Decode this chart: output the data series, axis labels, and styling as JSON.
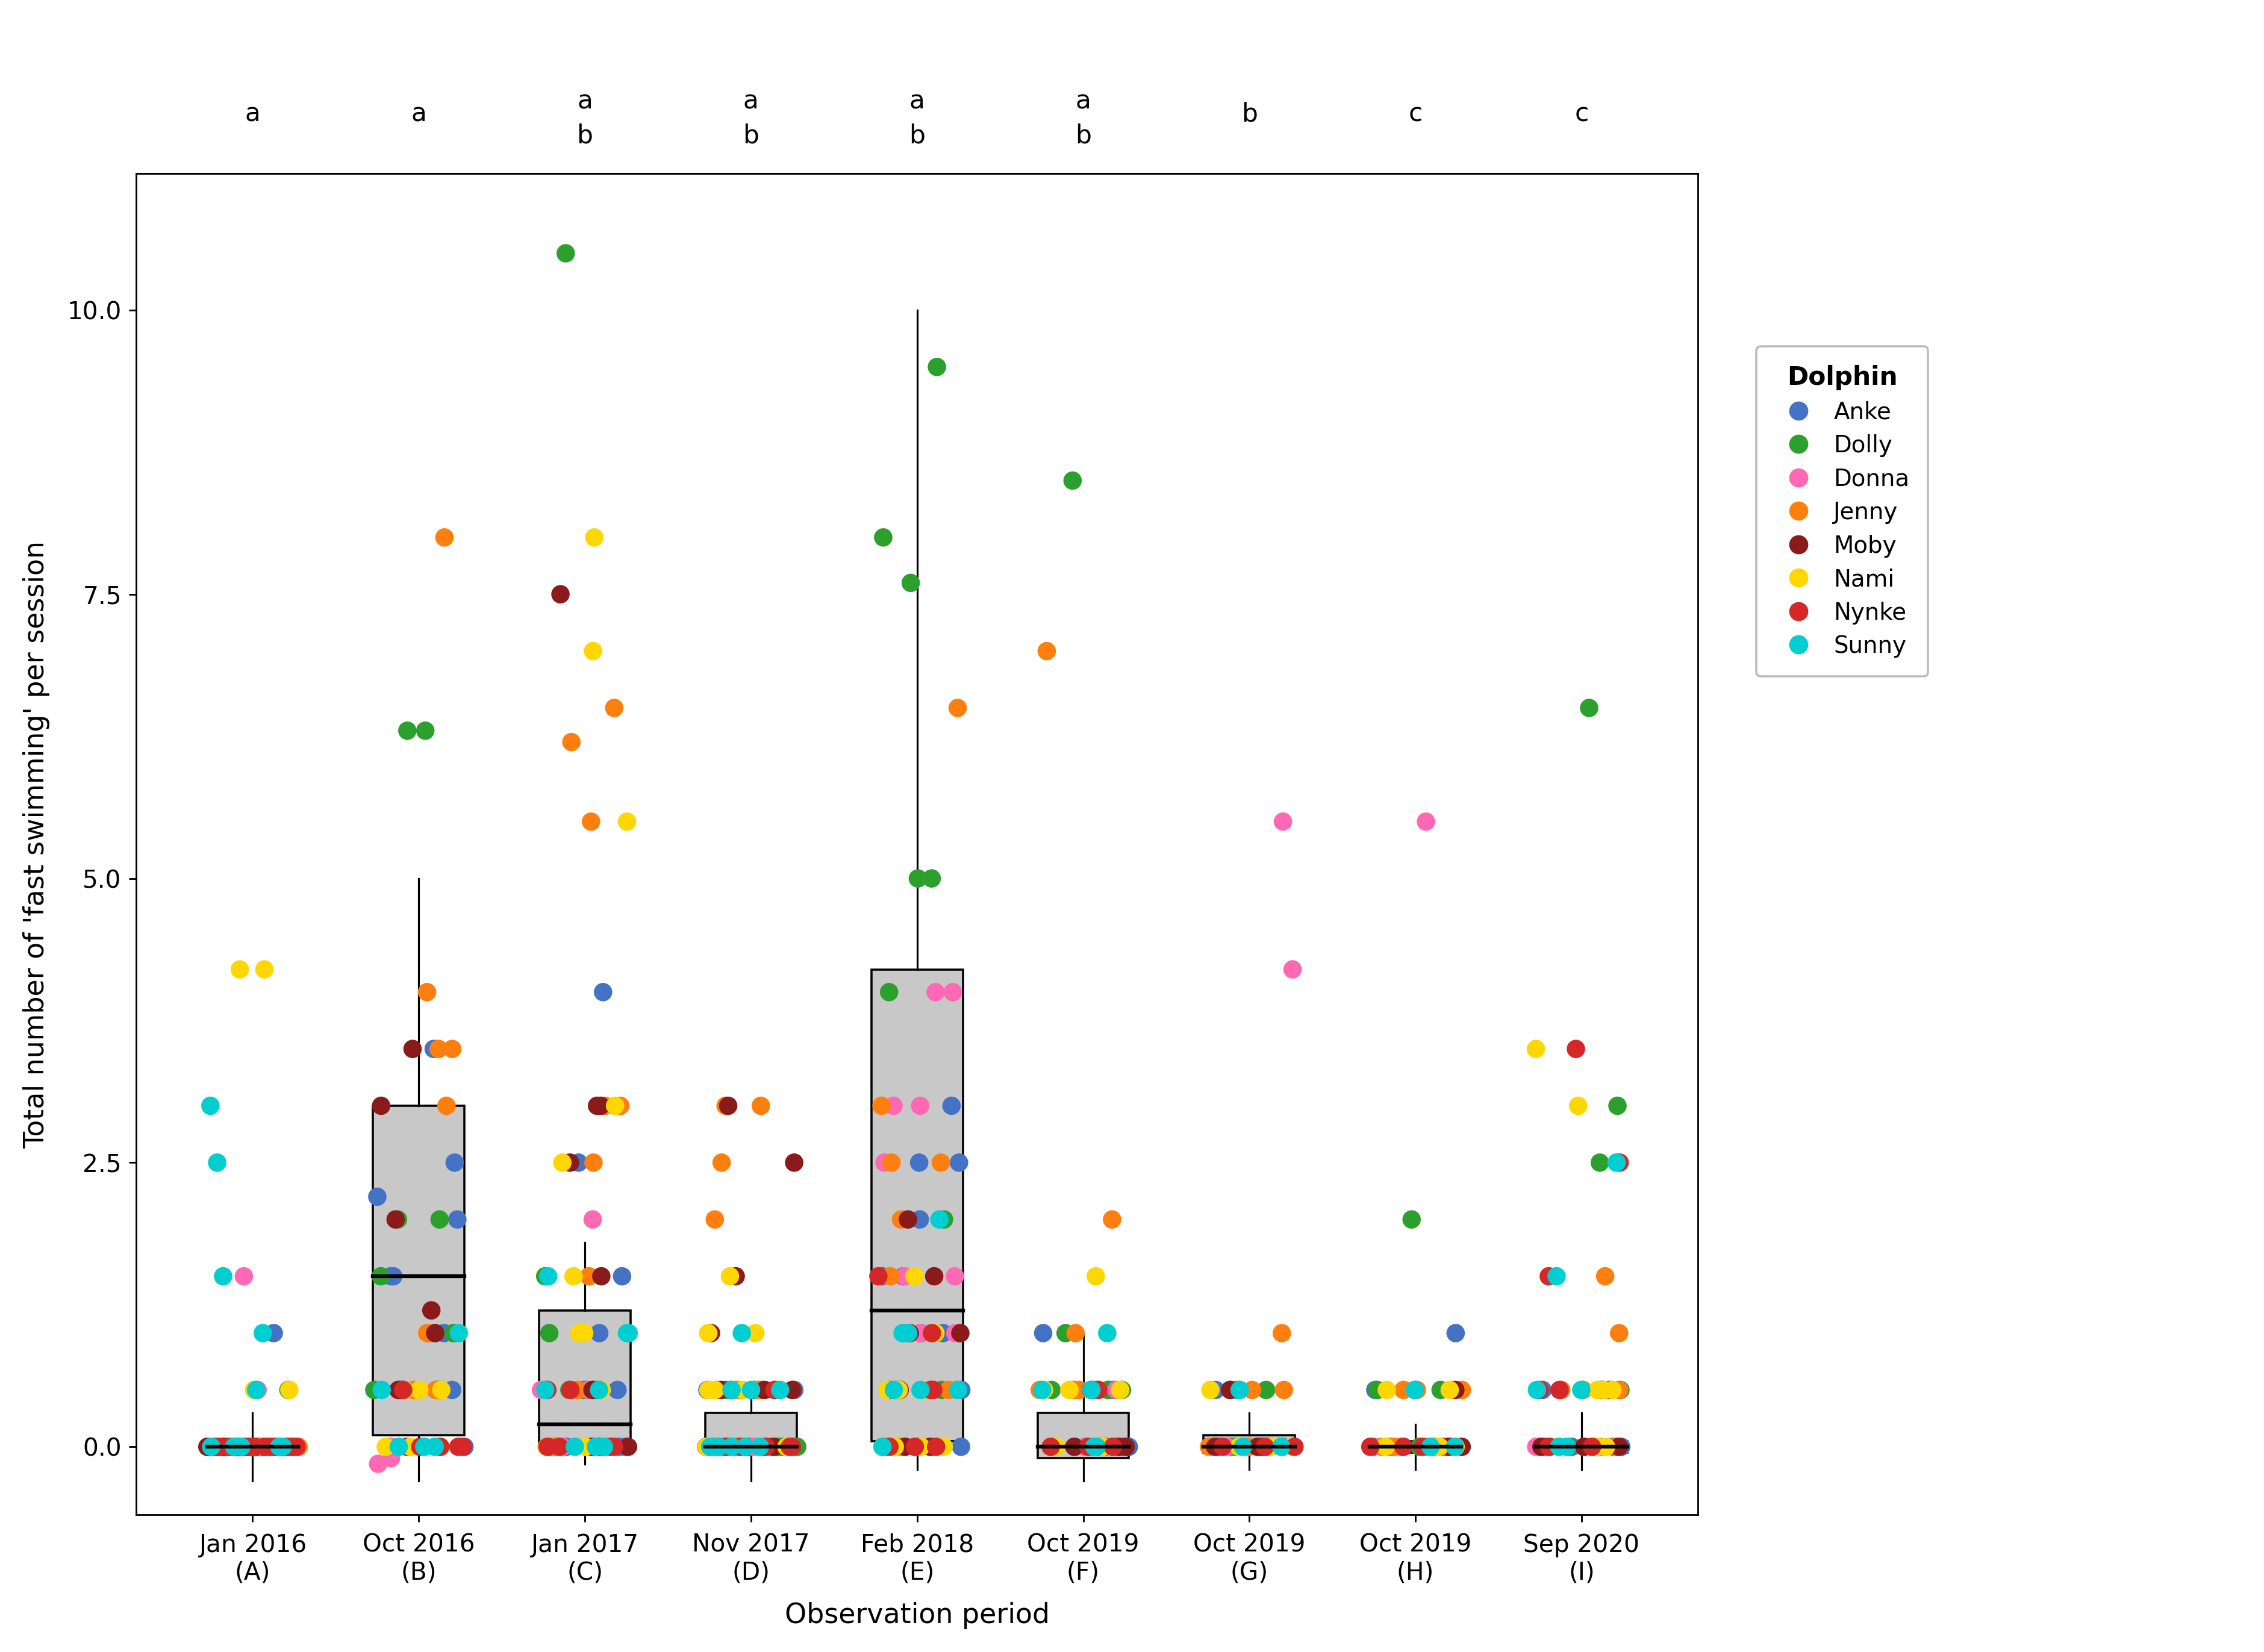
{
  "periods": [
    "Jan 2016\n(A)",
    "Oct 2016\n(B)",
    "Jan 2017\n(C)",
    "Nov 2017\n(D)",
    "Feb 2018\n(E)",
    "Oct 2019\n(F)",
    "Oct 2019\n(G)",
    "Oct 2019\n(H)",
    "Sep 2020\n(I)"
  ],
  "top_labels": [
    [
      "a"
    ],
    [
      "a"
    ],
    [
      "a",
      "b"
    ],
    [
      "a",
      "b"
    ],
    [
      "a",
      "b"
    ],
    [
      "a",
      "b"
    ],
    [
      "b"
    ],
    [
      "c"
    ],
    [
      "c"
    ]
  ],
  "dolphins": [
    "Anke",
    "Dolly",
    "Donna",
    "Jenny",
    "Moby",
    "Nami",
    "Nynke",
    "Sunny"
  ],
  "dolphin_colors": {
    "Anke": "#4472C4",
    "Dolly": "#2CA02C",
    "Donna": "#FF69B4",
    "Jenny": "#FF7F0E",
    "Moby": "#8B1A1A",
    "Nami": "#FFD700",
    "Nynke": "#D62728",
    "Sunny": "#00CED1"
  },
  "ylabel": "Total number of 'fast swimming' per session",
  "xlabel": "Observation period",
  "legend_title": "Dolphin",
  "ylim": [
    -0.6,
    11.2
  ],
  "yticks": [
    0.0,
    2.5,
    5.0,
    7.5,
    10.0
  ],
  "box_data": {
    "A": {
      "q1": -0.05,
      "median": 0.0,
      "q3": 0.05,
      "whisker_low": -0.3,
      "whisker_high": 0.3
    },
    "B": {
      "q1": 0.1,
      "median": 1.5,
      "q3": 3.0,
      "whisker_low": -0.3,
      "whisker_high": 5.0
    },
    "C": {
      "q1": 0.0,
      "median": 0.2,
      "q3": 1.2,
      "whisker_low": -0.15,
      "whisker_high": 1.8
    },
    "D": {
      "q1": -0.05,
      "median": 0.0,
      "q3": 0.3,
      "whisker_low": -0.3,
      "whisker_high": 0.5
    },
    "E": {
      "q1": 0.05,
      "median": 1.2,
      "q3": 4.2,
      "whisker_low": -0.2,
      "whisker_high": 10.0
    },
    "F": {
      "q1": -0.1,
      "median": 0.0,
      "q3": 0.3,
      "whisker_low": -0.3,
      "whisker_high": 1.0
    },
    "G": {
      "q1": -0.05,
      "median": 0.0,
      "q3": 0.1,
      "whisker_low": -0.2,
      "whisker_high": 0.3
    },
    "H": {
      "q1": -0.05,
      "median": 0.0,
      "q3": 0.05,
      "whisker_low": -0.2,
      "whisker_high": 0.2
    },
    "I": {
      "q1": -0.05,
      "median": 0.0,
      "q3": 0.05,
      "whisker_low": -0.2,
      "whisker_high": 0.3
    }
  },
  "scatter_data": {
    "A": [
      {
        "dolphin": "Anke",
        "y": [
          0.0,
          0.0,
          0.0,
          0.0,
          0.0,
          0.0,
          0.0,
          1.0,
          0.0,
          0.0,
          0.0,
          0.0,
          0.0,
          0.0,
          0.0,
          0.0,
          0.0,
          0.0,
          0.0,
          0.0
        ]
      },
      {
        "dolphin": "Dolly",
        "y": [
          0.0,
          0.0,
          0.0,
          0.0,
          0.0,
          0.0,
          0.0,
          0.0,
          0.0,
          0.0,
          0.0,
          0.0,
          0.0,
          0.0,
          0.0,
          0.0,
          0.5,
          0.0,
          0.0,
          0.0
        ]
      },
      {
        "dolphin": "Donna",
        "y": [
          0.0,
          1.5,
          0.5,
          0.0,
          0.0,
          0.0,
          0.0,
          0.0,
          0.0,
          0.0
        ]
      },
      {
        "dolphin": "Jenny",
        "y": [
          0.0,
          0.0,
          0.0,
          0.0,
          0.0,
          0.0,
          0.0,
          0.0,
          0.0,
          0.0,
          0.0,
          0.0,
          0.0,
          0.0,
          0.0,
          0.0,
          0.0,
          0.0,
          0.0,
          0.0
        ]
      },
      {
        "dolphin": "Moby",
        "y": [
          0.0,
          0.0,
          0.0,
          0.0,
          0.0,
          0.0,
          0.0,
          0.0,
          0.0,
          0.0,
          0.0,
          0.0,
          0.0,
          0.0,
          0.0,
          0.0,
          0.0,
          0.0,
          0.0,
          0.0
        ]
      },
      {
        "dolphin": "Nami",
        "y": [
          4.2,
          4.2,
          0.5,
          0.5,
          0.0,
          0.0,
          0.0,
          0.0
        ]
      },
      {
        "dolphin": "Nynke",
        "y": [
          0.0,
          0.0,
          0.0,
          0.0,
          0.0,
          0.0,
          0.0,
          0.0,
          0.0,
          0.0,
          0.0,
          0.0,
          0.0,
          0.0,
          0.0,
          0.0,
          0.0,
          0.0,
          0.0,
          0.0
        ]
      },
      {
        "dolphin": "Sunny",
        "y": [
          3.0,
          2.5,
          0.5,
          0.0,
          0.0,
          0.0,
          1.0,
          0.0,
          1.5,
          0.0
        ]
      }
    ],
    "B": [
      {
        "dolphin": "Anke",
        "y": [
          0.5,
          1.0,
          2.0,
          1.5,
          0.0,
          0.5,
          2.5,
          0.5,
          2.2,
          1.5,
          0.5,
          3.5
        ]
      },
      {
        "dolphin": "Dolly",
        "y": [
          1.0,
          2.0,
          1.5,
          0.5,
          0.0,
          2.0,
          1.0,
          6.3,
          6.3,
          0.5
        ]
      },
      {
        "dolphin": "Donna",
        "y": [
          0.0,
          0.5,
          0.0,
          -0.1,
          1.0,
          -0.15
        ]
      },
      {
        "dolphin": "Jenny",
        "y": [
          0.0,
          0.5,
          1.0,
          0.5,
          3.5,
          8.0,
          0.5,
          3.0,
          4.0,
          3.5,
          0.5
        ]
      },
      {
        "dolphin": "Moby",
        "y": [
          0.0,
          0.5,
          3.0,
          3.5,
          1.0,
          2.0,
          0.5,
          1.2
        ]
      },
      {
        "dolphin": "Nami",
        "y": [
          0.0,
          0.5,
          0.5,
          0.0,
          0.5,
          0.0
        ]
      },
      {
        "dolphin": "Nynke",
        "y": [
          0.0,
          0.0,
          0.5,
          0.0,
          0.0
        ]
      },
      {
        "dolphin": "Sunny",
        "y": [
          0.0,
          0.5,
          0.0,
          1.0,
          0.0
        ]
      }
    ],
    "C": [
      {
        "dolphin": "Anke",
        "y": [
          0.0,
          0.5,
          4.0,
          1.5,
          0.0,
          0.5,
          0.0,
          2.5,
          0.0,
          1.0,
          0.5,
          0.0,
          0.0
        ]
      },
      {
        "dolphin": "Dolly",
        "y": [
          0.5,
          1.0,
          0.0,
          0.5,
          0.0,
          10.5,
          0.5,
          1.5,
          0.0,
          0.0,
          0.5
        ]
      },
      {
        "dolphin": "Donna",
        "y": [
          0.0,
          0.5,
          0.0,
          0.0,
          0.5,
          0.0,
          2.0,
          0.0
        ]
      },
      {
        "dolphin": "Jenny",
        "y": [
          0.0,
          0.0,
          1.5,
          5.5,
          6.5,
          6.2,
          2.5,
          0.5,
          0.0,
          0.0,
          3.0,
          3.0,
          0.5,
          0.0,
          0.0
        ]
      },
      {
        "dolphin": "Moby",
        "y": [
          0.0,
          0.0,
          7.5,
          2.5,
          3.0,
          1.5,
          0.0,
          3.0,
          0.5
        ]
      },
      {
        "dolphin": "Nami",
        "y": [
          1.0,
          8.0,
          1.5,
          2.5,
          5.5,
          7.0,
          3.0,
          1.0,
          0.5,
          0.0
        ]
      },
      {
        "dolphin": "Nynke",
        "y": [
          0.0,
          0.5,
          0.0,
          0.5,
          0.0,
          0.0
        ]
      },
      {
        "dolphin": "Sunny",
        "y": [
          0.0,
          0.5,
          1.0,
          0.5,
          1.0,
          0.0,
          1.5,
          0.0
        ]
      }
    ],
    "D": [
      {
        "dolphin": "Anke",
        "y": [
          0.0,
          0.5,
          0.0,
          0.0,
          0.5,
          0.0,
          0.0,
          0.0,
          0.5,
          0.0,
          0.0,
          0.0,
          0.0,
          0.0,
          0.0,
          0.0,
          0.0,
          0.0,
          0.5,
          0.0
        ]
      },
      {
        "dolphin": "Dolly",
        "y": [
          0.0,
          0.5,
          0.0,
          0.5,
          0.0,
          0.0,
          0.0,
          0.5,
          0.0,
          0.0,
          0.0,
          0.0,
          0.5,
          0.0,
          0.0,
          0.0
        ]
      },
      {
        "dolphin": "Donna",
        "y": [
          0.0,
          0.0,
          0.0,
          0.5,
          0.0,
          0.0,
          0.0
        ]
      },
      {
        "dolphin": "Jenny",
        "y": [
          0.0,
          0.5,
          0.0,
          0.0,
          0.5,
          0.0,
          0.5,
          3.0,
          2.5,
          3.0,
          2.0,
          0.5,
          0.0,
          0.0
        ]
      },
      {
        "dolphin": "Moby",
        "y": [
          0.0,
          0.5,
          1.0,
          0.5,
          1.5,
          2.5,
          3.0,
          0.5,
          0.0
        ]
      },
      {
        "dolphin": "Nami",
        "y": [
          0.0,
          0.5,
          1.0,
          1.5,
          0.5,
          0.0,
          0.5,
          0.0,
          1.0,
          0.5,
          0.0
        ]
      },
      {
        "dolphin": "Nynke",
        "y": [
          0.0,
          0.0,
          0.5,
          0.0,
          0.0,
          0.0,
          0.0
        ]
      },
      {
        "dolphin": "Sunny",
        "y": [
          0.0,
          0.5,
          0.0,
          0.5,
          1.0,
          0.5,
          0.0,
          0.0,
          0.0
        ]
      }
    ],
    "E": [
      {
        "dolphin": "Anke",
        "y": [
          0.0,
          1.5,
          0.5,
          2.5,
          1.0,
          3.0,
          2.0,
          2.5,
          0.5,
          1.0,
          0.0,
          1.5,
          0.5
        ]
      },
      {
        "dolphin": "Dolly",
        "y": [
          0.0,
          1.0,
          0.5,
          2.0,
          4.0,
          5.0,
          5.0,
          1.0,
          0.5,
          8.0,
          9.5,
          7.6
        ]
      },
      {
        "dolphin": "Donna",
        "y": [
          0.0,
          1.0,
          1.5,
          3.0,
          4.0,
          1.0,
          1.5,
          4.0,
          3.0,
          2.5
        ]
      },
      {
        "dolphin": "Jenny",
        "y": [
          0.0,
          0.5,
          1.0,
          2.5,
          0.0,
          1.5,
          6.5,
          2.0,
          2.5,
          3.0,
          0.5,
          0.5,
          0.0
        ]
      },
      {
        "dolphin": "Moby",
        "y": [
          0.0,
          0.5,
          1.0,
          0.0,
          2.0,
          1.5,
          0.5,
          0.0,
          1.0
        ]
      },
      {
        "dolphin": "Nami",
        "y": [
          0.0,
          0.5,
          1.0,
          0.5,
          1.5,
          0.0,
          0.5,
          0.5,
          0.0
        ]
      },
      {
        "dolphin": "Nynke",
        "y": [
          0.0,
          0.0,
          1.0,
          1.5,
          0.0,
          0.5,
          0.5
        ]
      },
      {
        "dolphin": "Sunny",
        "y": [
          0.0,
          0.5,
          1.0,
          2.0,
          0.5,
          1.0,
          0.5
        ]
      }
    ],
    "F": [
      {
        "dolphin": "Anke",
        "y": [
          0.0,
          0.0,
          0.5,
          0.5,
          1.0,
          0.0,
          0.0,
          0.5,
          0.0
        ]
      },
      {
        "dolphin": "Dolly",
        "y": [
          0.0,
          0.5,
          1.0,
          8.5,
          0.5,
          0.0,
          0.5
        ]
      },
      {
        "dolphin": "Donna",
        "y": [
          0.0,
          0.5,
          0.0,
          0.0,
          0.5
        ]
      },
      {
        "dolphin": "Jenny",
        "y": [
          0.5,
          7.0,
          0.5,
          1.0,
          2.0,
          0.0,
          0.5,
          0.0,
          0.5
        ]
      },
      {
        "dolphin": "Moby",
        "y": [
          0.0,
          0.0,
          0.5,
          0.0,
          0.0
        ]
      },
      {
        "dolphin": "Nami",
        "y": [
          0.0,
          0.5,
          1.5,
          0.0,
          0.5,
          0.5
        ]
      },
      {
        "dolphin": "Nynke",
        "y": [
          0.0,
          0.5,
          0.0,
          0.0
        ]
      },
      {
        "dolphin": "Sunny",
        "y": [
          0.0,
          0.5,
          1.0,
          0.0,
          0.5
        ]
      }
    ],
    "G": [
      {
        "dolphin": "Anke",
        "y": [
          0.0,
          0.5,
          0.0,
          0.0,
          0.0,
          0.5
        ]
      },
      {
        "dolphin": "Dolly",
        "y": [
          0.0,
          0.5,
          0.0,
          0.5,
          0.0,
          0.0
        ]
      },
      {
        "dolphin": "Donna",
        "y": [
          0.0,
          0.0,
          5.5,
          4.2,
          0.0
        ]
      },
      {
        "dolphin": "Jenny",
        "y": [
          0.0,
          0.5,
          0.0,
          0.5,
          1.0,
          0.0,
          0.5
        ]
      },
      {
        "dolphin": "Moby",
        "y": [
          0.0,
          0.0,
          0.5,
          0.0
        ]
      },
      {
        "dolphin": "Nami",
        "y": [
          0.0,
          0.5,
          0.0,
          0.0
        ]
      },
      {
        "dolphin": "Nynke",
        "y": [
          0.0,
          0.0,
          0.0
        ]
      },
      {
        "dolphin": "Sunny",
        "y": [
          0.0,
          0.5,
          0.0
        ]
      }
    ],
    "H": [
      {
        "dolphin": "Anke",
        "y": [
          0.0,
          0.5,
          0.0,
          0.5,
          1.0,
          0.0,
          0.0,
          0.0
        ]
      },
      {
        "dolphin": "Dolly",
        "y": [
          0.0,
          0.5,
          0.0,
          0.5,
          2.0,
          0.0,
          0.0
        ]
      },
      {
        "dolphin": "Donna",
        "y": [
          0.0,
          0.0,
          0.5,
          0.0,
          5.5,
          0.0
        ]
      },
      {
        "dolphin": "Jenny",
        "y": [
          0.0,
          0.5,
          0.0,
          0.5,
          0.0,
          0.5,
          0.0,
          0.0
        ]
      },
      {
        "dolphin": "Moby",
        "y": [
          0.0,
          0.0,
          0.5,
          0.0
        ]
      },
      {
        "dolphin": "Nami",
        "y": [
          0.0,
          0.5,
          0.0,
          0.5,
          0.0
        ]
      },
      {
        "dolphin": "Nynke",
        "y": [
          0.0,
          0.0,
          0.0
        ]
      },
      {
        "dolphin": "Sunny",
        "y": [
          0.0,
          0.5,
          0.0
        ]
      }
    ],
    "I": [
      {
        "dolphin": "Anke",
        "y": [
          0.0,
          0.5,
          0.0,
          0.5,
          0.0,
          0.0,
          0.0,
          0.0
        ]
      },
      {
        "dolphin": "Dolly",
        "y": [
          0.0,
          0.5,
          0.0,
          6.5,
          2.5,
          3.0,
          0.0,
          0.5
        ]
      },
      {
        "dolphin": "Donna",
        "y": [
          0.0,
          0.0,
          0.5,
          0.0,
          0.0
        ]
      },
      {
        "dolphin": "Jenny",
        "y": [
          0.0,
          0.5,
          1.0,
          0.5,
          0.0,
          0.5,
          1.5,
          0.0,
          0.5
        ]
      },
      {
        "dolphin": "Moby",
        "y": [
          0.0,
          0.0,
          0.5,
          0.0
        ]
      },
      {
        "dolphin": "Nami",
        "y": [
          0.0,
          0.5,
          0.0,
          0.5,
          3.5,
          3.0,
          0.0,
          0.5
        ]
      },
      {
        "dolphin": "Nynke",
        "y": [
          0.0,
          0.5,
          1.5,
          0.0,
          3.5,
          2.5,
          0.5
        ]
      },
      {
        "dolphin": "Sunny",
        "y": [
          0.0,
          0.5,
          2.5,
          0.0,
          1.5,
          0.5
        ]
      }
    ]
  },
  "figsize_inches": [
    14.8,
    10.8
  ],
  "dpi": 254
}
